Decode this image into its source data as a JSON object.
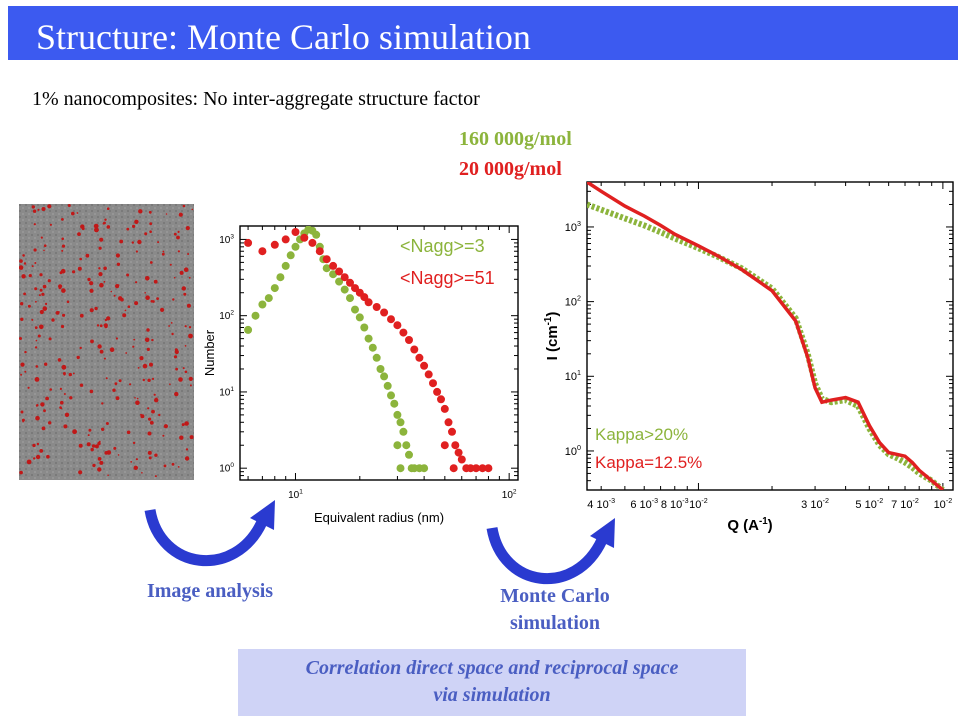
{
  "slide": {
    "title": "Structure: Monte Carlo simulation",
    "subtitle": "1% nanocomposites: No inter-aggregate structure factor",
    "mw_green": "160 000g/mol",
    "mw_red": "20 000g/mol",
    "image_analysis_label": "Image analysis",
    "mc_label_line1": "Monte Carlo",
    "mc_label_line2": "simulation",
    "correlation_line1": "Correlation direct space and reciprocal space",
    "correlation_line2": "via simulation"
  },
  "colors": {
    "title_bar": "#3c5af0",
    "green": "#8cb43c",
    "red": "#e02020",
    "label_blue": "#4a5ec2",
    "box_bg": "#cfd3f6",
    "arrow_blue": "#2a3ad0"
  },
  "chart_data": [
    {
      "type": "scatter",
      "xlabel": "Equivalent radius (nm)",
      "ylabel": "Number",
      "xscale": "log",
      "yscale": "log",
      "xlim": [
        5.5,
        110
      ],
      "ylim": [
        0.7,
        1500
      ],
      "xticks": [
        {
          "value": 10,
          "label": "10",
          "exp": "1"
        },
        {
          "value": 100,
          "label": "10",
          "exp": "2"
        }
      ],
      "yticks": [
        {
          "value": 1,
          "label": "10",
          "exp": "0"
        },
        {
          "value": 10,
          "label": "10",
          "exp": "1"
        },
        {
          "value": 100,
          "label": "10",
          "exp": "2"
        },
        {
          "value": 1000,
          "label": "10",
          "exp": "3"
        }
      ],
      "legend": [
        {
          "label": "<Nagg>=3",
          "color": "#8cb43c"
        },
        {
          "label": "<Nagg>=51",
          "color": "#e02020"
        }
      ],
      "series": [
        {
          "color": "#8cb43c",
          "points": [
            [
              6,
              65
            ],
            [
              6.5,
              100
            ],
            [
              7,
              140
            ],
            [
              7.5,
              170
            ],
            [
              8,
              230
            ],
            [
              8.5,
              320
            ],
            [
              9,
              450
            ],
            [
              9.5,
              620
            ],
            [
              10,
              800
            ],
            [
              10.5,
              1000
            ],
            [
              11,
              1200
            ],
            [
              11.5,
              1350
            ],
            [
              12,
              1300
            ],
            [
              12.5,
              1150
            ],
            [
              13,
              800
            ],
            [
              13.5,
              550
            ],
            [
              14,
              420
            ],
            [
              15,
              350
            ],
            [
              16,
              280
            ],
            [
              17,
              220
            ],
            [
              18,
              170
            ],
            [
              19,
              120
            ],
            [
              20,
              95
            ],
            [
              21,
              70
            ],
            [
              22,
              50
            ],
            [
              23,
              38
            ],
            [
              24,
              28
            ],
            [
              25,
              20
            ],
            [
              26,
              16
            ],
            [
              27,
              12
            ],
            [
              28,
              9
            ],
            [
              29,
              7
            ],
            [
              30,
              5
            ],
            [
              31,
              4
            ],
            [
              32,
              3
            ],
            [
              33,
              2
            ],
            [
              34,
              1.5
            ],
            [
              35,
              1
            ],
            [
              36,
              1
            ],
            [
              38,
              1
            ],
            [
              40,
              1
            ],
            [
              30,
              2
            ],
            [
              31,
              1
            ]
          ]
        },
        {
          "color": "#e02020",
          "points": [
            [
              6,
              900
            ],
            [
              7,
              700
            ],
            [
              8,
              850
            ],
            [
              9,
              1000
            ],
            [
              10,
              1250
            ],
            [
              11,
              1050
            ],
            [
              12,
              900
            ],
            [
              13,
              700
            ],
            [
              14,
              550
            ],
            [
              15,
              450
            ],
            [
              16,
              380
            ],
            [
              17,
              320
            ],
            [
              18,
              270
            ],
            [
              19,
              230
            ],
            [
              20,
              200
            ],
            [
              21,
              175
            ],
            [
              22,
              150
            ],
            [
              24,
              130
            ],
            [
              26,
              110
            ],
            [
              28,
              90
            ],
            [
              30,
              75
            ],
            [
              32,
              60
            ],
            [
              34,
              48
            ],
            [
              36,
              36
            ],
            [
              38,
              28
            ],
            [
              40,
              22
            ],
            [
              42,
              17
            ],
            [
              44,
              13
            ],
            [
              46,
              10
            ],
            [
              48,
              8
            ],
            [
              50,
              6
            ],
            [
              52,
              4
            ],
            [
              54,
              3
            ],
            [
              56,
              2
            ],
            [
              58,
              1.6
            ],
            [
              60,
              1.3
            ],
            [
              63,
              1
            ],
            [
              66,
              1
            ],
            [
              70,
              1
            ],
            [
              75,
              1
            ],
            [
              80,
              1
            ],
            [
              50,
              2
            ],
            [
              55,
              1
            ]
          ]
        }
      ]
    },
    {
      "type": "line",
      "xlabel": "Q (A",
      "xlabel_exp": "-1",
      "ylabel": "I (cm",
      "ylabel_exp": "-1",
      "xscale": "log",
      "yscale": "log",
      "xlim": [
        0.0035,
        0.11
      ],
      "ylim": [
        0.3,
        4000
      ],
      "xticks": [
        {
          "value": 0.004,
          "label": "4 10",
          "exp": "-3"
        },
        {
          "value": 0.006,
          "label": "6 10",
          "exp": "-3"
        },
        {
          "value": 0.008,
          "label": "8 10",
          "exp": "-3"
        },
        {
          "value": 0.01,
          "label": "10",
          "exp": "-2"
        },
        {
          "value": 0.03,
          "label": "3 10",
          "exp": "-2"
        },
        {
          "value": 0.05,
          "label": "5 10",
          "exp": "-2"
        },
        {
          "value": 0.07,
          "label": "7 10",
          "exp": "-2"
        },
        {
          "value": 0.1,
          "label": "10",
          "exp": "-2"
        }
      ],
      "yticks": [
        {
          "value": 1,
          "label": "10",
          "exp": "0"
        },
        {
          "value": 10,
          "label": "10",
          "exp": "1"
        },
        {
          "value": 100,
          "label": "10",
          "exp": "2"
        },
        {
          "value": 1000,
          "label": "10",
          "exp": "3"
        }
      ],
      "legend": [
        {
          "label": "Kappa>20%",
          "color": "#8cb43c"
        },
        {
          "label": "Kappa=12.5%",
          "color": "#e02020"
        }
      ],
      "series": [
        {
          "color": "#8cb43c",
          "points": [
            [
              0.0035,
              2000
            ],
            [
              0.004,
              1700
            ],
            [
              0.005,
              1300
            ],
            [
              0.006,
              1050
            ],
            [
              0.007,
              850
            ],
            [
              0.008,
              700
            ],
            [
              0.01,
              520
            ],
            [
              0.012,
              400
            ],
            [
              0.015,
              280
            ],
            [
              0.02,
              150
            ],
            [
              0.025,
              60
            ],
            [
              0.028,
              20
            ],
            [
              0.03,
              8
            ],
            [
              0.032,
              5
            ],
            [
              0.035,
              4.5
            ],
            [
              0.04,
              4.8
            ],
            [
              0.045,
              4
            ],
            [
              0.05,
              2
            ],
            [
              0.055,
              1.2
            ],
            [
              0.06,
              0.9
            ],
            [
              0.065,
              0.8
            ],
            [
              0.07,
              0.7
            ],
            [
              0.075,
              0.6
            ],
            [
              0.08,
              0.5
            ],
            [
              0.09,
              0.4
            ],
            [
              0.1,
              0.3
            ]
          ]
        },
        {
          "color": "#e02020",
          "points": [
            [
              0.0035,
              4000
            ],
            [
              0.004,
              3000
            ],
            [
              0.005,
              1900
            ],
            [
              0.006,
              1400
            ],
            [
              0.007,
              1050
            ],
            [
              0.008,
              800
            ],
            [
              0.01,
              560
            ],
            [
              0.012,
              410
            ],
            [
              0.015,
              270
            ],
            [
              0.02,
              140
            ],
            [
              0.025,
              55
            ],
            [
              0.028,
              18
            ],
            [
              0.03,
              7
            ],
            [
              0.032,
              4.5
            ],
            [
              0.035,
              4.8
            ],
            [
              0.04,
              5.2
            ],
            [
              0.045,
              4.5
            ],
            [
              0.05,
              2.2
            ],
            [
              0.055,
              1.3
            ],
            [
              0.06,
              0.95
            ],
            [
              0.065,
              0.9
            ],
            [
              0.07,
              0.85
            ],
            [
              0.075,
              0.7
            ],
            [
              0.08,
              0.55
            ],
            [
              0.09,
              0.4
            ],
            [
              0.1,
              0.3
            ]
          ]
        }
      ]
    }
  ]
}
